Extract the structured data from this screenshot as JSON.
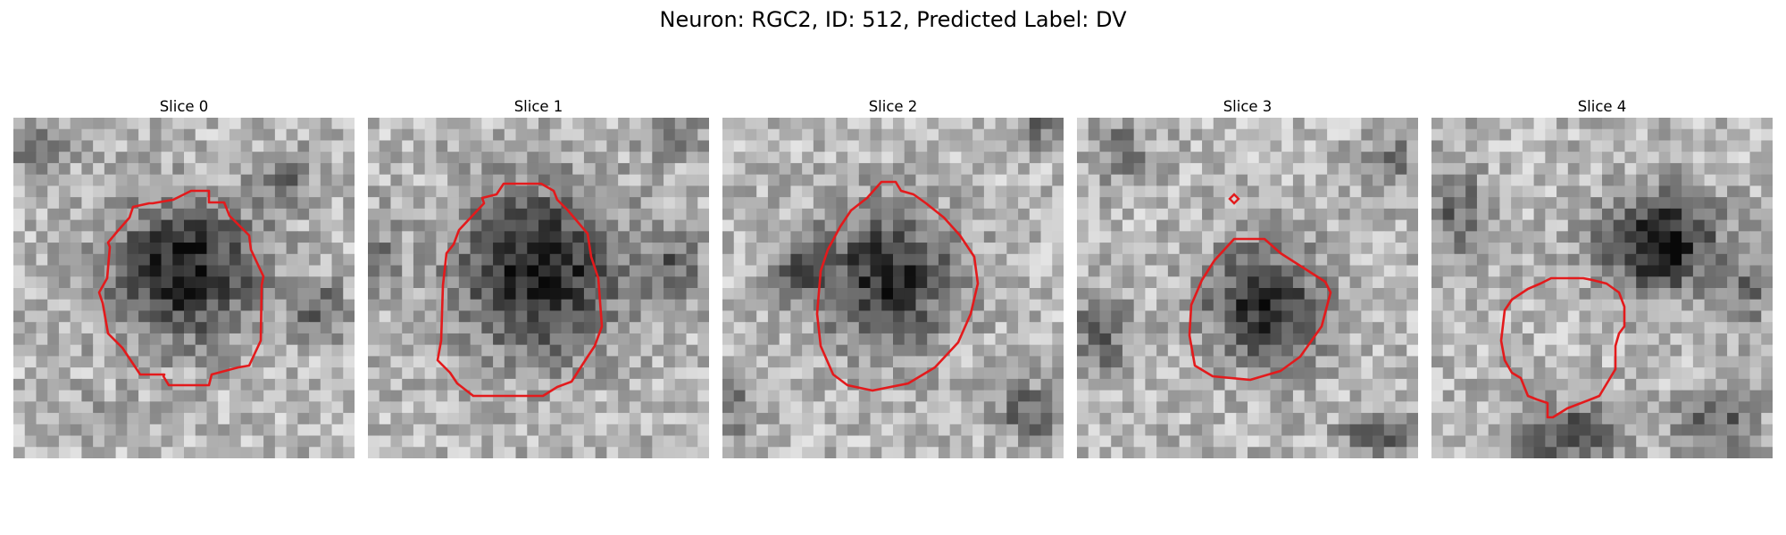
{
  "figure": {
    "title": "Neuron: RGC2, ID: 512, Predicted Label: DV",
    "contour_color": "#e31a1c",
    "colormap": "gray"
  },
  "panels": [
    {
      "title": "Slice 0"
    },
    {
      "title": "Slice 1"
    },
    {
      "title": "Slice 2"
    },
    {
      "title": "Slice 3"
    },
    {
      "title": "Slice 4"
    }
  ]
}
